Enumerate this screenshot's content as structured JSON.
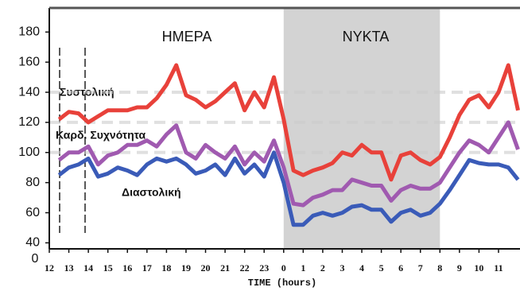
{
  "chart_data": {
    "type": "line",
    "x_label": "TIME (hours)",
    "day_label": "ΗΜΕΡΑ",
    "night_label": "ΝΥΚΤΑ",
    "night_band": [
      24,
      32
    ],
    "y_origin_label": "0",
    "reference_lines": [
      140,
      120,
      100
    ],
    "x": [
      12.5,
      13,
      13.5,
      14,
      14.5,
      15,
      15.5,
      16,
      16.5,
      17,
      17.5,
      18,
      18.5,
      19,
      19.5,
      20,
      20.5,
      21,
      21.5,
      22,
      22.5,
      23,
      23.5,
      24,
      24.5,
      25,
      25.5,
      26,
      26.5,
      27,
      27.5,
      28,
      28.5,
      29,
      29.5,
      30,
      30.5,
      31,
      31.5,
      32,
      32.5,
      33,
      33.5,
      34,
      34.5,
      35,
      35.5,
      36
    ],
    "series": [
      {
        "name": "Συστολική",
        "color": "#e8413a",
        "values": [
          122,
          127,
          126,
          120,
          124,
          128,
          128,
          128,
          130,
          130,
          136,
          145,
          158,
          138,
          135,
          130,
          134,
          140,
          146,
          128,
          140,
          130,
          150,
          122,
          88,
          85,
          88,
          90,
          93,
          100,
          98,
          105,
          100,
          100,
          82,
          98,
          100,
          95,
          92,
          97,
          110,
          125,
          135,
          138,
          130,
          140,
          158,
          128
        ]
      },
      {
        "name": "Καρδ. Συχνότητα",
        "color": "#a05ab0",
        "values": [
          95,
          100,
          100,
          104,
          92,
          98,
          100,
          105,
          105,
          108,
          104,
          112,
          118,
          100,
          96,
          105,
          100,
          96,
          104,
          92,
          100,
          94,
          108,
          90,
          66,
          65,
          70,
          72,
          75,
          75,
          82,
          80,
          78,
          78,
          68,
          75,
          78,
          76,
          76,
          80,
          90,
          100,
          108,
          105,
          100,
          110,
          120,
          102
        ]
      },
      {
        "name": "Διαστολική",
        "color": "#3a5bb8",
        "values": [
          85,
          90,
          92,
          96,
          84,
          86,
          90,
          88,
          85,
          92,
          96,
          94,
          96,
          92,
          86,
          88,
          92,
          85,
          96,
          86,
          92,
          84,
          100,
          80,
          52,
          52,
          58,
          60,
          58,
          60,
          64,
          65,
          62,
          62,
          54,
          60,
          62,
          58,
          60,
          66,
          75,
          85,
          95,
          93,
          92,
          92,
          90,
          82
        ]
      }
    ],
    "xlim": [
      12,
      36.1
    ],
    "xticks": [
      12,
      13,
      14,
      15,
      16,
      17,
      18,
      19,
      20,
      21,
      22,
      23,
      {
        "value": 24,
        "label": "0"
      },
      {
        "value": 25,
        "label": "1"
      },
      {
        "value": 26,
        "label": "2"
      },
      {
        "value": 27,
        "label": "3"
      },
      {
        "value": 28,
        "label": "4"
      },
      {
        "value": 29,
        "label": "5"
      },
      {
        "value": 30,
        "label": "6"
      },
      {
        "value": 31,
        "label": "7"
      },
      {
        "value": 32,
        "label": "8"
      },
      {
        "value": 33,
        "label": "9"
      },
      {
        "value": 34,
        "label": "10"
      },
      {
        "value": 35,
        "label": "11"
      }
    ],
    "ylim": [
      36,
      196
    ],
    "yticks": [
      40,
      60,
      80,
      100,
      120,
      140,
      160,
      180
    ]
  }
}
